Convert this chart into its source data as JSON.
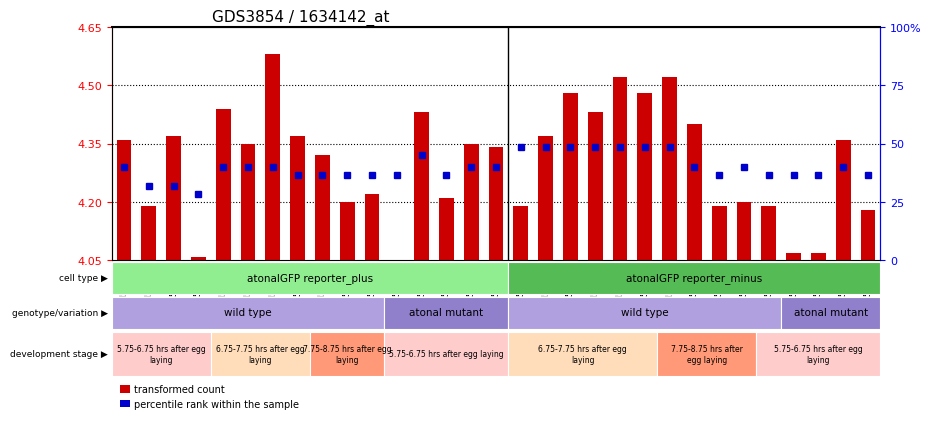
{
  "title": "GDS3854 / 1634142_at",
  "samples": [
    "GSM537542",
    "GSM537544",
    "GSM537546",
    "GSM537548",
    "GSM537550",
    "GSM537552",
    "GSM537554",
    "GSM537556",
    "GSM537559",
    "GSM537561",
    "GSM537563",
    "GSM537564",
    "GSM537565",
    "GSM537567",
    "GSM537569",
    "GSM537571",
    "GSM537543",
    "GSM537545",
    "GSM537547",
    "GSM537549",
    "GSM537551",
    "GSM537553",
    "GSM537555",
    "GSM537557",
    "GSM537558",
    "GSM537560",
    "GSM537562",
    "GSM537566",
    "GSM537568",
    "GSM537570",
    "GSM537572"
  ],
  "bar_values": [
    4.36,
    4.19,
    4.37,
    4.06,
    4.44,
    4.35,
    4.58,
    4.37,
    4.32,
    4.2,
    4.22,
    4.05,
    4.43,
    4.21,
    4.35,
    4.34,
    4.19,
    4.37,
    4.48,
    4.43,
    4.52,
    4.48,
    4.52,
    4.4,
    4.19,
    4.2,
    4.19,
    4.07,
    4.07,
    4.36,
    4.18
  ],
  "dot_values": [
    4.29,
    4.24,
    4.24,
    4.22,
    4.29,
    4.29,
    4.29,
    4.27,
    4.27,
    4.27,
    4.27,
    4.27,
    4.32,
    4.27,
    4.29,
    4.29,
    4.34,
    4.34,
    4.34,
    4.34,
    4.34,
    4.34,
    4.34,
    4.29,
    4.27,
    4.29,
    4.27,
    4.27,
    4.27,
    4.29,
    4.27
  ],
  "ymin": 4.05,
  "ymax": 4.65,
  "yticks": [
    4.05,
    4.2,
    4.35,
    4.5,
    4.65
  ],
  "ytick_labels": [
    "4.05",
    "4.20",
    "4.35",
    "4.50",
    "4.65"
  ],
  "hlines": [
    4.2,
    4.35,
    4.5
  ],
  "right_yticks": [
    0,
    25,
    50,
    75,
    100
  ],
  "right_ytick_labels": [
    "0",
    "25",
    "50",
    "75",
    "100%"
  ],
  "bar_color": "#cc0000",
  "dot_color": "#0000cc",
  "bar_bottom": 4.05,
  "cell_type_regions": [
    {
      "label": "atonalGFP reporter_plus",
      "start": 0,
      "end": 16,
      "color": "#90ee90"
    },
    {
      "label": "atonalGFP reporter_minus",
      "start": 16,
      "end": 31,
      "color": "#55bb55"
    }
  ],
  "genotype_regions": [
    {
      "label": "wild type",
      "start": 0,
      "end": 11,
      "color": "#b0a0e0"
    },
    {
      "label": "atonal mutant",
      "start": 11,
      "end": 16,
      "color": "#9080cc"
    },
    {
      "label": "wild type",
      "start": 16,
      "end": 27,
      "color": "#b0a0e0"
    },
    {
      "label": "atonal mutant",
      "start": 27,
      "end": 31,
      "color": "#9080cc"
    }
  ],
  "dev_stage_regions": [
    {
      "label": "5.75-6.75 hrs after egg\nlaying",
      "start": 0,
      "end": 4,
      "color": "#ffcccc"
    },
    {
      "label": "6.75-7.75 hrs after egg\nlaying",
      "start": 4,
      "end": 8,
      "color": "#ffddbb"
    },
    {
      "label": "7.75-8.75 hrs after egg\nlaying",
      "start": 8,
      "end": 11,
      "color": "#ff9977"
    },
    {
      "label": "5.75-6.75 hrs after egg laying",
      "start": 11,
      "end": 16,
      "color": "#ffcccc"
    },
    {
      "label": "6.75-7.75 hrs after egg\nlaying",
      "start": 16,
      "end": 22,
      "color": "#ffddbb"
    },
    {
      "label": "7.75-8.75 hrs after\negg laying",
      "start": 22,
      "end": 26,
      "color": "#ff9977"
    },
    {
      "label": "5.75-6.75 hrs after egg\nlaying",
      "start": 26,
      "end": 31,
      "color": "#ffcccc"
    }
  ],
  "row_label_names": [
    "cell type",
    "genotype/variation",
    "development stage"
  ],
  "legend_items": [
    {
      "label": "transformed count",
      "color": "#cc0000"
    },
    {
      "label": "percentile rank within the sample",
      "color": "#0000cc"
    }
  ]
}
